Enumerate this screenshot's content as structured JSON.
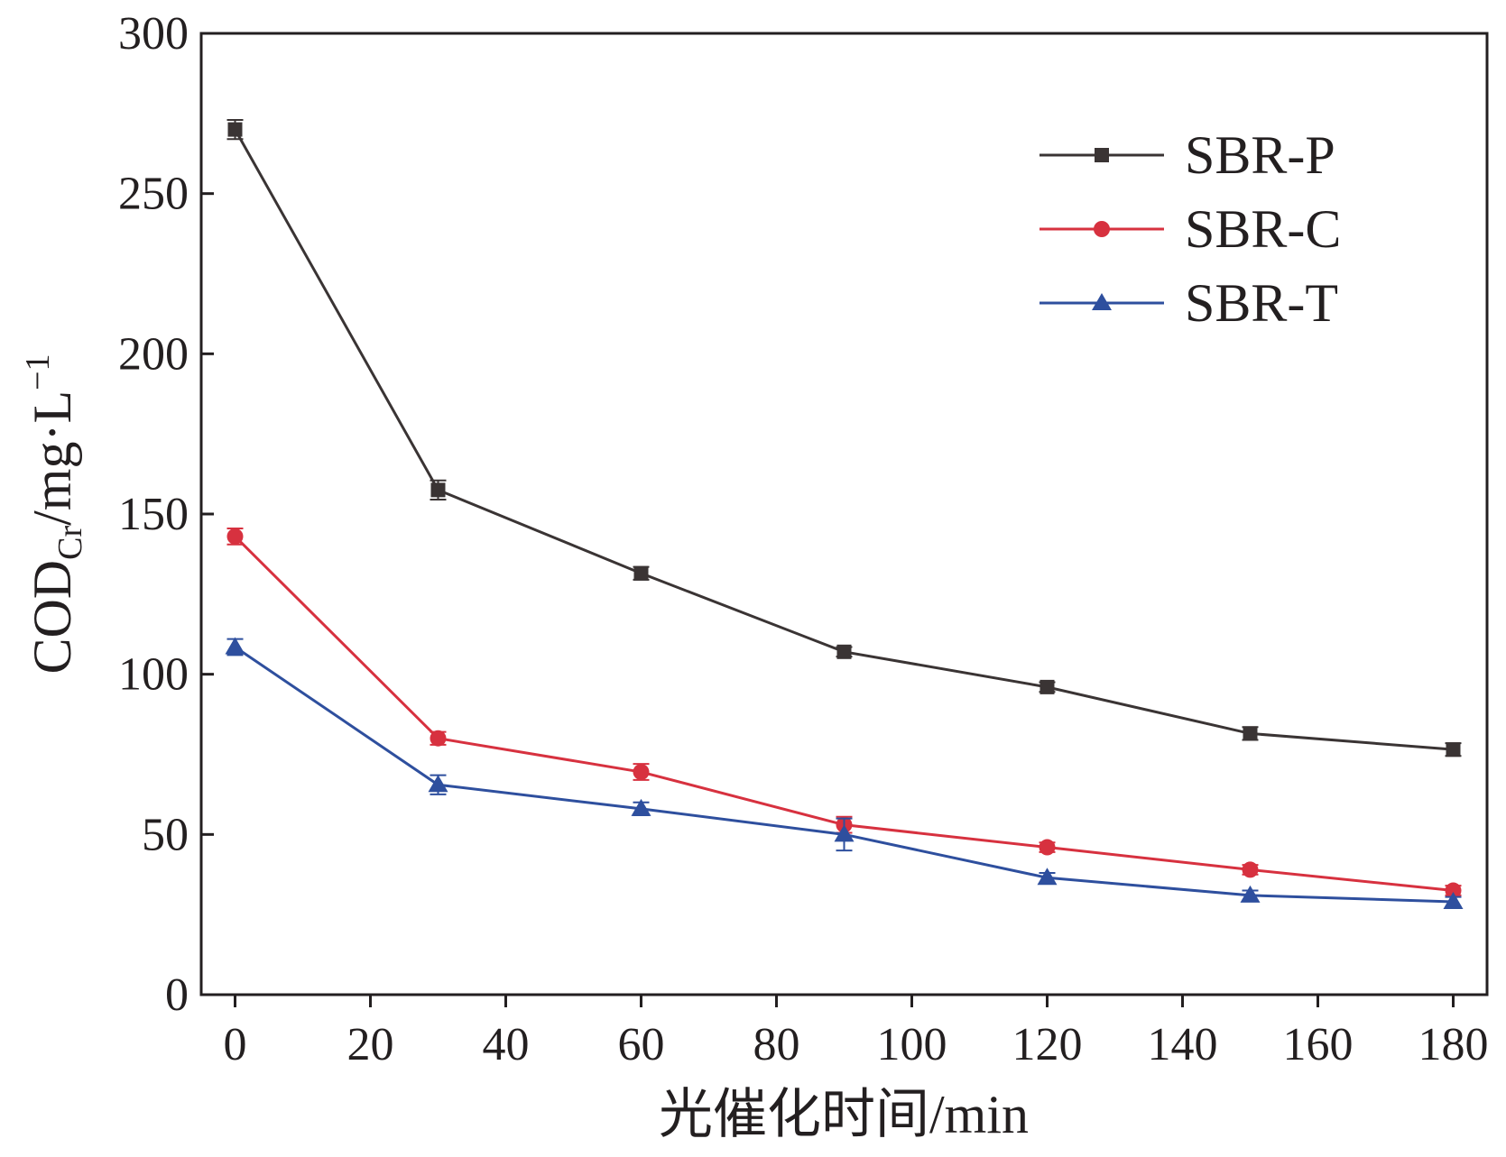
{
  "chart_data": {
    "type": "line",
    "title": "",
    "xlabel": "光催化时间/min",
    "ylabel_parts": {
      "main": "COD",
      "sub": "Cr",
      "rest": "/mg·L",
      "sup": "−1"
    },
    "xlim": [
      0,
      180
    ],
    "ylim": [
      0,
      300
    ],
    "xticks": [
      0,
      20,
      40,
      60,
      80,
      100,
      120,
      140,
      160,
      180
    ],
    "yticks": [
      0,
      50,
      100,
      150,
      200,
      250,
      300
    ],
    "x": [
      0,
      30,
      60,
      90,
      120,
      150,
      180
    ],
    "grid": false,
    "legend_position": "top-right",
    "series": [
      {
        "name": "SBR-P",
        "marker": "square",
        "color": "#3a3434",
        "values": [
          270,
          157.5,
          131.5,
          107,
          96,
          81.5,
          76.5
        ],
        "errors": [
          3,
          3,
          2,
          1.5,
          1.5,
          2,
          2
        ]
      },
      {
        "name": "SBR-C",
        "marker": "circle",
        "color": "#d7313f",
        "values": [
          143,
          80,
          69.5,
          53,
          46,
          39,
          32.5
        ],
        "errors": [
          2.5,
          2,
          2.5,
          2.5,
          1.5,
          1.5,
          1.5
        ]
      },
      {
        "name": "SBR-T",
        "marker": "triangle",
        "color": "#2e4f9e",
        "values": [
          108.5,
          65.5,
          58,
          50,
          36.5,
          31,
          29
        ],
        "errors": [
          2.5,
          3,
          2,
          5,
          1.5,
          1.5,
          1.5
        ]
      }
    ]
  }
}
